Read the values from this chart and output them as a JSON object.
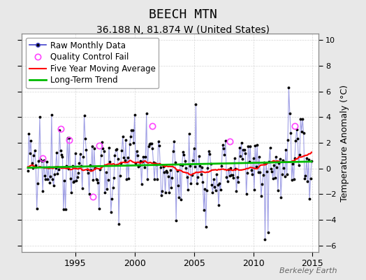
{
  "title": "BEECH MTN",
  "subtitle": "36.188 N, 81.874 W (United States)",
  "ylabel": "Temperature Anomaly (°C)",
  "watermark": "Berkeley Earth",
  "xlim": [
    1990.5,
    2015.5
  ],
  "ylim": [
    -6.5,
    10.5
  ],
  "yticks": [
    -6,
    -4,
    -2,
    0,
    2,
    4,
    6,
    8,
    10
  ],
  "xticks": [
    1995,
    2000,
    2005,
    2010,
    2015
  ],
  "background_color": "#e8e8e8",
  "plot_bg_color": "#ffffff",
  "raw_line_color": "#4444cc",
  "raw_line_alpha": 0.5,
  "raw_marker_color": "#000000",
  "moving_avg_color": "#ff0000",
  "trend_color": "#00bb00",
  "qc_fail_color": "#ff44ff",
  "title_fontsize": 13,
  "subtitle_fontsize": 10,
  "legend_fontsize": 8.5,
  "watermark_fontsize": 8,
  "grid_color": "#cccccc",
  "seed": 99,
  "n_months": 288,
  "start_year": 1991.0,
  "qc_fail_positions": [
    [
      1992.25,
      0.8
    ],
    [
      1993.75,
      3.1
    ],
    [
      1994.5,
      2.2
    ],
    [
      1996.5,
      -2.2
    ],
    [
      1997.0,
      1.8
    ],
    [
      2001.5,
      3.3
    ],
    [
      2008.0,
      2.1
    ],
    [
      2013.5,
      3.3
    ]
  ]
}
